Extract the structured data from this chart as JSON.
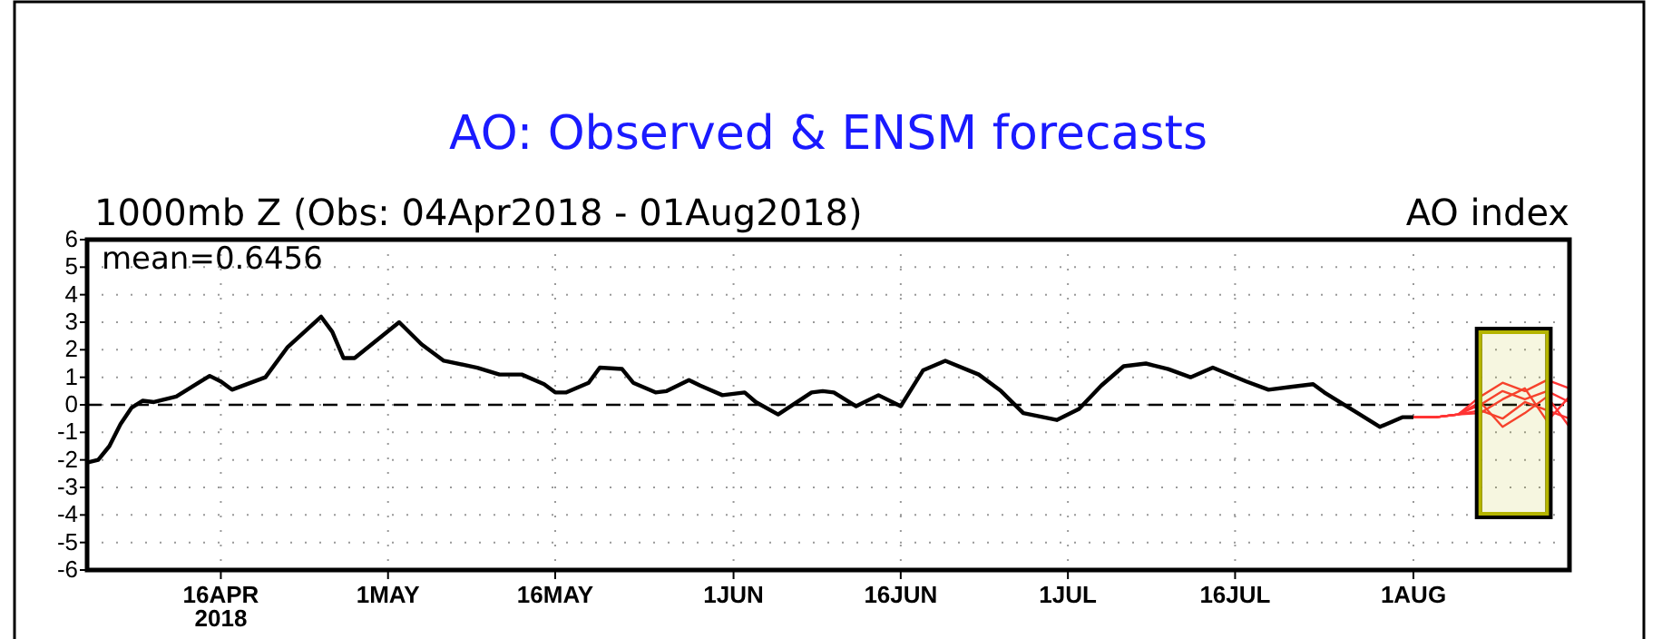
{
  "chart_data": {
    "type": "line",
    "title": "AO: Observed & ENSM forecasts",
    "subtitle": "1000mb Z (Obs: 04Apr2018 - 01Aug2018)",
    "ylabel": "AO index",
    "annotations": [
      "mean=0.6456"
    ],
    "xlim": [
      "2018-04-04",
      "2018-08-15"
    ],
    "xticks": [
      {
        "value": "2018-04-16",
        "label": "16APR\n2018"
      },
      {
        "value": "2018-05-01",
        "label": "1MAY"
      },
      {
        "value": "2018-05-16",
        "label": "16MAY"
      },
      {
        "value": "2018-06-01",
        "label": "1JUN"
      },
      {
        "value": "2018-06-16",
        "label": "16JUN"
      },
      {
        "value": "2018-07-01",
        "label": "1JUL"
      },
      {
        "value": "2018-07-16",
        "label": "16JUL"
      },
      {
        "value": "2018-08-01",
        "label": "1AUG"
      }
    ],
    "ylim": [
      -6,
      6
    ],
    "yticks": [
      -6,
      -5,
      -4,
      -3,
      -2,
      -1,
      0,
      1,
      2,
      3,
      4,
      5,
      6
    ],
    "grid": true,
    "ref_lines": [
      {
        "axis": "y",
        "value": 0,
        "line_style": "dashed",
        "color": "#000000"
      }
    ],
    "bands": [
      {
        "axis": "x",
        "from": "2018-08-07",
        "to": "2018-08-13",
        "color": "#b4b400"
      }
    ],
    "series": [
      {
        "color": "#000000",
        "x": [
          "2018-04-04",
          "2018-04-05",
          "2018-04-06",
          "2018-04-07",
          "2018-04-08",
          "2018-04-09",
          "2018-04-10",
          "2018-04-12",
          "2018-04-14",
          "2018-04-15",
          "2018-04-16",
          "2018-04-17",
          "2018-04-20",
          "2018-04-22",
          "2018-04-25",
          "2018-04-26",
          "2018-04-27",
          "2018-04-28",
          "2018-05-02",
          "2018-05-04",
          "2018-05-06",
          "2018-05-09",
          "2018-05-11",
          "2018-05-13",
          "2018-05-15",
          "2018-05-16",
          "2018-05-17",
          "2018-05-19",
          "2018-05-20",
          "2018-05-22",
          "2018-05-23",
          "2018-05-25",
          "2018-05-26",
          "2018-05-28",
          "2018-05-29",
          "2018-05-31",
          "2018-06-02",
          "2018-06-03",
          "2018-06-05",
          "2018-06-08",
          "2018-06-09",
          "2018-06-10",
          "2018-06-12",
          "2018-06-14",
          "2018-06-16",
          "2018-06-18",
          "2018-06-20",
          "2018-06-23",
          "2018-06-25",
          "2018-06-27",
          "2018-06-30",
          "2018-07-02",
          "2018-07-04",
          "2018-07-06",
          "2018-07-08",
          "2018-07-10",
          "2018-07-12",
          "2018-07-14",
          "2018-07-17",
          "2018-07-19",
          "2018-07-21",
          "2018-07-23",
          "2018-07-24",
          "2018-07-27",
          "2018-07-29",
          "2018-07-31",
          "2018-08-01"
        ],
        "values": [
          -2.1,
          -2.0,
          -1.5,
          -0.7,
          -0.1,
          0.15,
          0.1,
          0.3,
          0.8,
          1.05,
          0.85,
          0.55,
          1.0,
          2.1,
          3.2,
          2.65,
          1.7,
          1.7,
          3.0,
          2.2,
          1.6,
          1.35,
          1.1,
          1.1,
          0.75,
          0.45,
          0.45,
          0.8,
          1.35,
          1.3,
          0.8,
          0.45,
          0.5,
          0.9,
          0.7,
          0.35,
          0.45,
          0.1,
          -0.35,
          0.45,
          0.5,
          0.45,
          -0.05,
          0.35,
          -0.05,
          1.25,
          1.6,
          1.1,
          0.5,
          -0.3,
          -0.55,
          -0.15,
          0.7,
          1.4,
          1.5,
          1.3,
          1.0,
          1.35,
          0.85,
          0.55,
          0.65,
          0.75,
          0.45,
          -0.3,
          -0.8,
          -0.45,
          -0.45
        ]
      },
      {
        "color": "#ff3333",
        "x": [
          "2018-08-01",
          "2018-08-03",
          "2018-08-05",
          "2018-08-07",
          "2018-08-09",
          "2018-08-11",
          "2018-08-13",
          "2018-08-15"
        ],
        "values": [
          -0.45,
          -0.45,
          -0.35,
          0.3,
          0.8,
          0.5,
          0.9,
          0.6
        ]
      },
      {
        "color": "#ff3333",
        "x": [
          "2018-08-01",
          "2018-08-03",
          "2018-08-05",
          "2018-08-07",
          "2018-08-09",
          "2018-08-11",
          "2018-08-13",
          "2018-08-15"
        ],
        "values": [
          -0.45,
          -0.45,
          -0.35,
          0.0,
          0.5,
          0.2,
          0.5,
          0.1
        ]
      },
      {
        "color": "#ff3333",
        "x": [
          "2018-08-01",
          "2018-08-03",
          "2018-08-05",
          "2018-08-07",
          "2018-08-09",
          "2018-08-11",
          "2018-08-13",
          "2018-08-15"
        ],
        "values": [
          -0.45,
          -0.45,
          -0.35,
          -0.2,
          -0.5,
          0.1,
          -0.2,
          -0.5
        ]
      },
      {
        "color": "#ff3333",
        "x": [
          "2018-08-01",
          "2018-08-03",
          "2018-08-05",
          "2018-08-07",
          "2018-08-09",
          "2018-08-11",
          "2018-08-13",
          "2018-08-15"
        ],
        "values": [
          -0.45,
          -0.45,
          -0.35,
          0.1,
          -0.8,
          -0.3,
          0.3,
          -0.8
        ]
      },
      {
        "color": "#ff3333",
        "x": [
          "2018-08-01",
          "2018-08-03",
          "2018-08-05",
          "2018-08-07",
          "2018-08-09",
          "2018-08-11",
          "2018-08-13",
          "2018-08-15"
        ],
        "values": [
          -0.45,
          -0.45,
          -0.35,
          -0.3,
          0.2,
          0.6,
          -0.6,
          0.3
        ]
      }
    ]
  }
}
